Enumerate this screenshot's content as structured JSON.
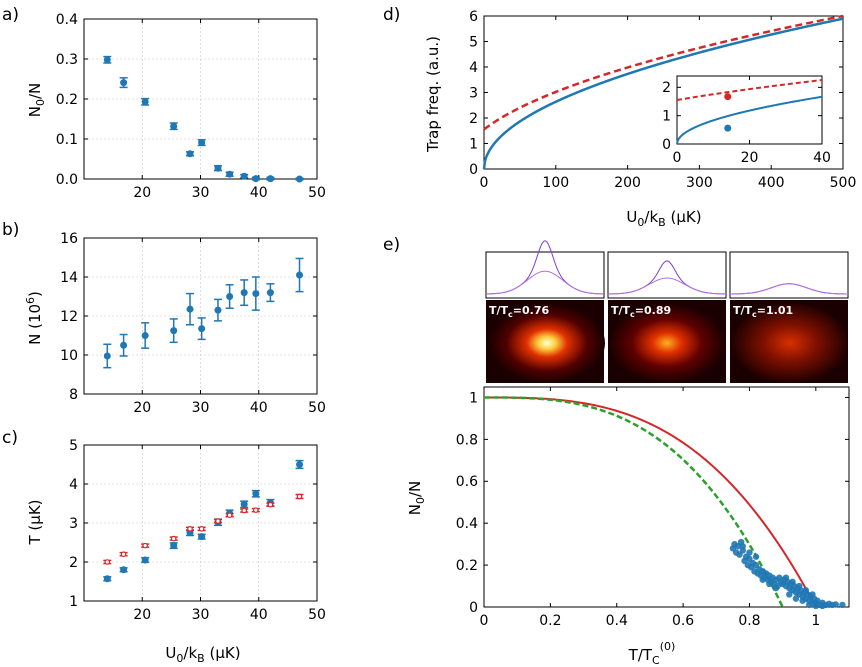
{
  "colors": {
    "blue": "#1f77b4",
    "red": "#d62728",
    "green": "#2ca02c",
    "purple": "#7b3fd4",
    "grid": "#c8c8c8"
  },
  "chart_data": [
    {
      "panel": "a)",
      "type": "scatter",
      "ylabel_text": "N",
      "ylabel_sub": "0",
      "ylabel_tail": "/N",
      "xlim": [
        10,
        50
      ],
      "ylim": [
        0,
        0.4
      ],
      "xticks": [
        20,
        30,
        40,
        50
      ],
      "yticks": [
        0.0,
        0.1,
        0.2,
        0.3,
        0.4
      ],
      "xticklabels": [
        "20",
        "30",
        "40",
        "50"
      ],
      "yticklabels": [
        "0.0",
        "0.1",
        "0.2",
        "0.3",
        "0.4"
      ],
      "series": [
        {
          "color": "blue",
          "errorbars": true,
          "points": [
            [
              14,
              0.298,
              0.008
            ],
            [
              16.8,
              0.241,
              0.012
            ],
            [
              20.5,
              0.193,
              0.008
            ],
            [
              25.4,
              0.132,
              0.008
            ],
            [
              28.2,
              0.063,
              0.005
            ],
            [
              30.2,
              0.091,
              0.007
            ],
            [
              33,
              0.027,
              0.006
            ],
            [
              35,
              0.012,
              0.005
            ],
            [
              37.5,
              0.007,
              0.004
            ],
            [
              39.5,
              0.001,
              0.003
            ],
            [
              42,
              0.001,
              0.003
            ],
            [
              47,
              0,
              0.002
            ]
          ]
        }
      ]
    },
    {
      "panel": "b)",
      "type": "scatter",
      "ylabel_text": "N (10",
      "ylabel_sup": "6",
      "ylabel_tail": ")",
      "xlim": [
        10,
        50
      ],
      "ylim": [
        8,
        16
      ],
      "xticks": [
        20,
        30,
        40,
        50
      ],
      "yticks": [
        8,
        10,
        12,
        14,
        16
      ],
      "xticklabels": [
        "20",
        "30",
        "40",
        "50"
      ],
      "yticklabels": [
        "8",
        "10",
        "12",
        "14",
        "16"
      ],
      "series": [
        {
          "color": "blue",
          "errorbars": true,
          "points": [
            [
              14,
              9.95,
              0.6
            ],
            [
              16.8,
              10.5,
              0.55
            ],
            [
              20.5,
              11,
              0.65
            ],
            [
              25.4,
              11.25,
              0.6
            ],
            [
              28.2,
              12.35,
              0.8
            ],
            [
              30.2,
              11.35,
              0.55
            ],
            [
              33,
              12.3,
              0.55
            ],
            [
              35,
              13.0,
              0.6
            ],
            [
              37.5,
              13.2,
              0.65
            ],
            [
              39.5,
              13.15,
              0.85
            ],
            [
              42,
              13.2,
              0.45
            ],
            [
              47,
              14.1,
              0.85
            ]
          ]
        }
      ]
    },
    {
      "panel": "c)",
      "type": "scatter",
      "ylabel_text": "T (µK)",
      "xlabel_text": "U",
      "xlabel_sub": "0",
      "xlabel_tail": "/k",
      "xlabel_sub2": "B",
      "xlabel_tail2": " (µK)",
      "xlim": [
        10,
        50
      ],
      "ylim": [
        1,
        5
      ],
      "xticks": [
        20,
        30,
        40,
        50
      ],
      "yticks": [
        1,
        2,
        3,
        4,
        5
      ],
      "xticklabels": [
        "20",
        "30",
        "40",
        "50"
      ],
      "yticklabels": [
        "1",
        "2",
        "3",
        "4",
        "5"
      ],
      "series": [
        {
          "color": "blue",
          "errorbars": true,
          "points": [
            [
              14,
              1.57,
              0.05
            ],
            [
              16.8,
              1.8,
              0.05
            ],
            [
              20.5,
              2.05,
              0.06
            ],
            [
              25.4,
              2.42,
              0.07
            ],
            [
              28.2,
              2.75,
              0.07
            ],
            [
              30.2,
              2.65,
              0.06
            ],
            [
              33,
              3.02,
              0.08
            ],
            [
              35,
              3.25,
              0.08
            ],
            [
              37.5,
              3.48,
              0.08
            ],
            [
              39.5,
              3.75,
              0.08
            ],
            [
              42,
              3.52,
              0.08
            ],
            [
              47,
              4.5,
              0.1
            ]
          ]
        },
        {
          "color": "red",
          "errorbars": true,
          "points": [
            [
              14,
              2.0,
              0.04
            ],
            [
              16.8,
              2.2,
              0.04
            ],
            [
              20.5,
              2.42,
              0.04
            ],
            [
              25.4,
              2.6,
              0.04
            ],
            [
              28.2,
              2.85,
              0.04
            ],
            [
              30.2,
              2.85,
              0.04
            ],
            [
              33,
              3.05,
              0.04
            ],
            [
              35,
              3.2,
              0.04
            ],
            [
              37.5,
              3.32,
              0.04
            ],
            [
              39.5,
              3.33,
              0.04
            ],
            [
              42,
              3.47,
              0.04
            ],
            [
              47,
              3.68,
              0.05
            ]
          ]
        }
      ]
    },
    {
      "panel": "d)",
      "type": "line",
      "ylabel_text": "Trap freq. (a.u.)",
      "xlabel_text": "U",
      "xlabel_sub": "0",
      "xlabel_tail": "/k",
      "xlabel_sub2": "B",
      "xlabel_tail2": " (µK)",
      "xlim": [
        0,
        500
      ],
      "ylim": [
        0,
        6
      ],
      "xticks": [
        0,
        100,
        200,
        300,
        400,
        500
      ],
      "yticks": [
        0,
        1,
        2,
        3,
        4,
        5,
        6
      ],
      "xticklabels": [
        "0",
        "100",
        "200",
        "300",
        "400",
        "500"
      ],
      "yticklabels": [
        "0",
        "1",
        "2",
        "3",
        "4",
        "5",
        "6"
      ],
      "curves": [
        {
          "color": "blue",
          "dash": false,
          "formula": "0.2636*sqrt(x)",
          "samples": [
            [
              0,
              0
            ],
            [
              100,
              2.64
            ],
            [
              200,
              3.73
            ],
            [
              300,
              4.57
            ],
            [
              400,
              5.27
            ],
            [
              500,
              5.89
            ]
          ]
        },
        {
          "color": "red",
          "dash": true,
          "formula": "sqrt(2.41 + 0.0672*x)",
          "samples": [
            [
              0,
              1.55
            ],
            [
              100,
              3.01
            ],
            [
              200,
              3.97
            ],
            [
              300,
              4.73
            ],
            [
              400,
              5.39
            ],
            [
              500,
              5.98
            ]
          ]
        }
      ],
      "inset": {
        "xlim": [
          0,
          40
        ],
        "ylim": [
          0,
          2.4
        ],
        "xticks": [
          0,
          20,
          40
        ],
        "yticks": [
          0,
          1,
          2
        ],
        "xticklabels": [
          "0",
          "20",
          "40"
        ],
        "yticklabels": [
          "0",
          "1",
          "2"
        ],
        "markers": [
          {
            "color": "red",
            "x": 14,
            "y": 1.67
          },
          {
            "color": "blue",
            "x": 14,
            "y": 0.56
          }
        ]
      }
    },
    {
      "panel": "e)",
      "type": "scatter",
      "ylabel_text": "N",
      "ylabel_sub": "0",
      "ylabel_tail": "/N",
      "xlabel_text": "T/T",
      "xlabel_sub": "C",
      "xlabel_sup": "(0)",
      "xlim": [
        0,
        1.1
      ],
      "ylim": [
        0,
        1.05
      ],
      "xticks": [
        0,
        0.2,
        0.4,
        0.6,
        0.8,
        1
      ],
      "yticks": [
        0,
        0.2,
        0.4,
        0.6,
        0.8,
        1
      ],
      "xticklabels": [
        "0",
        "0.2",
        "0.4",
        "0.6",
        "0.8",
        "1"
      ],
      "yticklabels": [
        "0",
        "0.2",
        "0.4",
        "0.6",
        "0.8",
        "1"
      ],
      "curves": [
        {
          "color": "red",
          "dash": false,
          "formula": "1 - x^3 (x<=1)"
        },
        {
          "color": "green",
          "dash": true,
          "formula": "1 - (x/0.9)^3 (x<=0.9)"
        }
      ],
      "scatter": [
        [
          0.75,
          0.28
        ],
        [
          0.755,
          0.3
        ],
        [
          0.76,
          0.26
        ],
        [
          0.765,
          0.29
        ],
        [
          0.77,
          0.25
        ],
        [
          0.775,
          0.31
        ],
        [
          0.78,
          0.27
        ],
        [
          0.785,
          0.22
        ],
        [
          0.79,
          0.24
        ],
        [
          0.795,
          0.2
        ],
        [
          0.8,
          0.23
        ],
        [
          0.805,
          0.19
        ],
        [
          0.81,
          0.21
        ],
        [
          0.815,
          0.17
        ],
        [
          0.82,
          0.2
        ],
        [
          0.825,
          0.16
        ],
        [
          0.83,
          0.18
        ],
        [
          0.835,
          0.15
        ],
        [
          0.84,
          0.17
        ],
        [
          0.845,
          0.14
        ],
        [
          0.85,
          0.16
        ],
        [
          0.855,
          0.13
        ],
        [
          0.86,
          0.15
        ],
        [
          0.865,
          0.12
        ],
        [
          0.87,
          0.14
        ],
        [
          0.875,
          0.11
        ],
        [
          0.88,
          0.13
        ],
        [
          0.885,
          0.1
        ],
        [
          0.89,
          0.14
        ],
        [
          0.895,
          0.12
        ],
        [
          0.9,
          0.11
        ],
        [
          0.905,
          0.13
        ],
        [
          0.91,
          0.1
        ],
        [
          0.915,
          0.12
        ],
        [
          0.92,
          0.09
        ],
        [
          0.925,
          0.11
        ],
        [
          0.93,
          0.08
        ],
        [
          0.935,
          0.1
        ],
        [
          0.94,
          0.07
        ],
        [
          0.945,
          0.09
        ],
        [
          0.95,
          0.06
        ],
        [
          0.955,
          0.08
        ],
        [
          0.96,
          0.05
        ],
        [
          0.965,
          0.07
        ],
        [
          0.97,
          0.04
        ],
        [
          0.975,
          0.06
        ],
        [
          0.98,
          0.03
        ],
        [
          0.985,
          0.05
        ],
        [
          0.99,
          0.02
        ],
        [
          0.995,
          0.04
        ],
        [
          1.0,
          0.02
        ],
        [
          1.005,
          0.03
        ],
        [
          1.01,
          0.01
        ],
        [
          1.02,
          0.02
        ],
        [
          1.03,
          0.01
        ],
        [
          1.04,
          0.015
        ],
        [
          1.05,
          0.01
        ],
        [
          1.06,
          0.012
        ],
        [
          0.93,
          0.12
        ],
        [
          0.91,
          0.14
        ],
        [
          0.95,
          0.1
        ],
        [
          0.97,
          0.08
        ],
        [
          0.99,
          0.06
        ],
        [
          0.8,
          0.26
        ],
        [
          0.82,
          0.24
        ],
        [
          0.78,
          0.29
        ],
        [
          0.96,
          0.03
        ],
        [
          0.98,
          0.01
        ],
        [
          1.0,
          0.005
        ],
        [
          0.94,
          0.04
        ],
        [
          0.92,
          0.06
        ],
        [
          0.88,
          0.09
        ],
        [
          0.86,
          0.11
        ],
        [
          0.84,
          0.13
        ],
        [
          1.02,
          0.005
        ],
        [
          1.08,
          0.01
        ]
      ],
      "images": [
        {
          "label": "T/T",
          "label_sub": "c",
          "label_tail": "=0.76",
          "intensity": 1.0,
          "peak_ratio": 0.8
        },
        {
          "label": "T/T",
          "label_sub": "c",
          "label_tail": "=0.89",
          "intensity": 0.7,
          "peak_ratio": 0.45
        },
        {
          "label": "T/T",
          "label_sub": "c",
          "label_tail": "=1.01",
          "intensity": 0.45,
          "peak_ratio": 0.0
        }
      ]
    }
  ]
}
